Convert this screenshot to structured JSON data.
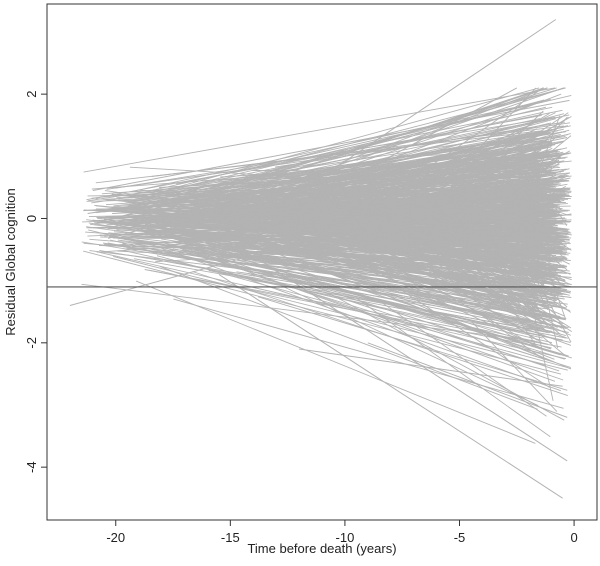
{
  "chart_data": {
    "type": "line",
    "title": "",
    "xlabel": "Time before death (years)",
    "ylabel": "Residual Global cognition",
    "xlim": [
      -23,
      1
    ],
    "ylim": [
      -4.85,
      3.45
    ],
    "xticks": [
      -20,
      -15,
      -10,
      -5,
      0
    ],
    "yticks": [
      -4,
      -2,
      0,
      2
    ],
    "xtick_labels": [
      "-20",
      "-15",
      "-10",
      "-5",
      "0"
    ],
    "ytick_labels": [
      "-4",
      "-2",
      "0",
      "2"
    ],
    "grid": false,
    "legend": "none",
    "series_color": "#b3b3b3",
    "reference_line": {
      "y": -1.1,
      "color": "#555555"
    },
    "trajectories_note": "Approximately 1000 individual subject trajectories; values estimated from visual fan shape. Endpoints at time of death range roughly from -4.5 to 3.2 residual units.",
    "highlighted_series": [
      {
        "name": "",
        "x": [
          -12.5,
          -0.8
        ],
        "y": [
          0.3,
          3.2
        ]
      },
      {
        "name": "",
        "x": [
          -15.5,
          -0.5
        ],
        "y": [
          -0.9,
          -4.5
        ]
      },
      {
        "name": "",
        "x": [
          -14.0,
          -0.3
        ],
        "y": [
          -0.6,
          -3.9
        ]
      },
      {
        "name": "",
        "x": [
          -10.0,
          -2.5
        ],
        "y": [
          0.6,
          2.1
        ]
      },
      {
        "name": "",
        "x": [
          -21.0,
          -0.2
        ],
        "y": [
          0.45,
          1.9
        ]
      },
      {
        "name": "",
        "x": [
          -22.0,
          -0.2
        ],
        "y": [
          -1.4,
          0.8
        ]
      },
      {
        "name": "",
        "x": [
          -9.0,
          -0.3
        ],
        "y": [
          -2.0,
          -3.2
        ]
      },
      {
        "name": "",
        "x": [
          -12.0,
          -0.5
        ],
        "y": [
          -2.1,
          -2.7
        ]
      }
    ],
    "generator": {
      "count": 1000,
      "seed": 7
    }
  }
}
